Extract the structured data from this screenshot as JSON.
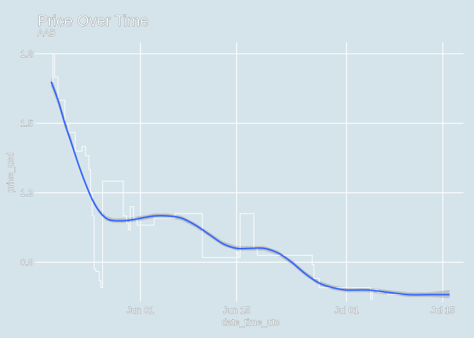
{
  "chart_data": {
    "type": "line",
    "title": "Price Over Time",
    "subtitle": "AAB",
    "xlabel": "date_time_utc",
    "ylabel": "price_usd",
    "xlim": [
      "2020-05-17",
      "2020-07-18"
    ],
    "ylim": [
      0.74,
      1.85
    ],
    "x_ticks": [
      {
        "date": "2020-06-01",
        "label": "Jun 01"
      },
      {
        "date": "2020-06-15",
        "label": "Jun 15"
      },
      {
        "date": "2020-07-01",
        "label": "Jul 01"
      },
      {
        "date": "2020-07-15",
        "label": "Jul 15"
      }
    ],
    "y_ticks": [
      {
        "value": 0.9,
        "label": "0.9"
      },
      {
        "value": 1.2,
        "label": "1.2"
      },
      {
        "value": 1.5,
        "label": "1.5"
      },
      {
        "value": 1.8,
        "label": "1.8"
      }
    ],
    "grid": true,
    "series": [
      {
        "kind": "step",
        "color": "#ffffff",
        "points": [
          {
            "x": "2020-05-19 00:00",
            "y": 1.68
          },
          {
            "x": "2020-05-19 06:00",
            "y": 1.8
          },
          {
            "x": "2020-05-19 12:00",
            "y": 1.7
          },
          {
            "x": "2020-05-20 00:00",
            "y": 1.6
          },
          {
            "x": "2020-05-21 00:00",
            "y": 1.5
          },
          {
            "x": "2020-05-21 12:00",
            "y": 1.46
          },
          {
            "x": "2020-05-22 12:00",
            "y": 1.38
          },
          {
            "x": "2020-05-23 12:00",
            "y": 1.4
          },
          {
            "x": "2020-05-24 00:00",
            "y": 1.36
          },
          {
            "x": "2020-05-24 12:00",
            "y": 1.3
          },
          {
            "x": "2020-05-24 18:00",
            "y": 1.2
          },
          {
            "x": "2020-05-25 00:00",
            "y": 1.1
          },
          {
            "x": "2020-05-25 06:00",
            "y": 0.87
          },
          {
            "x": "2020-05-25 12:00",
            "y": 0.86
          },
          {
            "x": "2020-05-26 00:00",
            "y": 0.82
          },
          {
            "x": "2020-05-26 06:00",
            "y": 0.79
          },
          {
            "x": "2020-05-26 12:00",
            "y": 1.25
          },
          {
            "x": "2020-05-29 12:00",
            "y": 1.1
          },
          {
            "x": "2020-05-30 00:00",
            "y": 1.07
          },
          {
            "x": "2020-05-30 06:00",
            "y": 1.04
          },
          {
            "x": "2020-05-30 12:00",
            "y": 1.14
          },
          {
            "x": "2020-05-31 00:00",
            "y": 1.09
          },
          {
            "x": "2020-05-31 12:00",
            "y": 1.06
          },
          {
            "x": "2020-06-03 00:00",
            "y": 1.09
          },
          {
            "x": "2020-06-06 00:00",
            "y": 1.11
          },
          {
            "x": "2020-06-10 00:00",
            "y": 0.92
          },
          {
            "x": "2020-06-15 00:00",
            "y": 0.94
          },
          {
            "x": "2020-06-15 06:00",
            "y": 0.92
          },
          {
            "x": "2020-06-15 12:00",
            "y": 1.11
          },
          {
            "x": "2020-06-17 12:00",
            "y": 0.96
          },
          {
            "x": "2020-06-18 00:00",
            "y": 0.93
          },
          {
            "x": "2020-06-26 00:00",
            "y": 0.89
          },
          {
            "x": "2020-06-26 06:00",
            "y": 0.83
          },
          {
            "x": "2020-06-27 00:00",
            "y": 0.79
          },
          {
            "x": "2020-07-04 12:00",
            "y": 0.74
          },
          {
            "x": "2020-07-04 18:00",
            "y": 0.78
          },
          {
            "x": "2020-07-05 12:00",
            "y": 0.77
          },
          {
            "x": "2020-07-07 00:00",
            "y": 0.76
          },
          {
            "x": "2020-07-16 00:00",
            "y": 0.76
          }
        ]
      },
      {
        "kind": "smooth",
        "color": "#3366ff",
        "band_color": "#a6a6a6",
        "points": [
          {
            "x": "2020-05-19",
            "y": 1.68,
            "lo": 1.66,
            "hi": 1.7
          },
          {
            "x": "2020-05-20",
            "y": 1.6,
            "lo": 1.58,
            "hi": 1.62
          },
          {
            "x": "2020-05-21",
            "y": 1.5,
            "lo": 1.48,
            "hi": 1.52
          },
          {
            "x": "2020-05-22",
            "y": 1.41,
            "lo": 1.4,
            "hi": 1.43
          },
          {
            "x": "2020-05-23",
            "y": 1.32,
            "lo": 1.31,
            "hi": 1.33
          },
          {
            "x": "2020-05-24",
            "y": 1.24,
            "lo": 1.23,
            "hi": 1.25
          },
          {
            "x": "2020-05-25",
            "y": 1.17,
            "lo": 1.16,
            "hi": 1.18
          },
          {
            "x": "2020-05-26",
            "y": 1.12,
            "lo": 1.11,
            "hi": 1.13
          },
          {
            "x": "2020-05-27",
            "y": 1.09,
            "lo": 1.08,
            "hi": 1.1
          },
          {
            "x": "2020-05-28",
            "y": 1.08,
            "lo": 1.07,
            "hi": 1.09
          },
          {
            "x": "2020-05-30",
            "y": 1.08,
            "lo": 1.07,
            "hi": 1.09
          },
          {
            "x": "2020-06-01",
            "y": 1.09,
            "lo": 1.08,
            "hi": 1.1
          },
          {
            "x": "2020-06-03",
            "y": 1.1,
            "lo": 1.09,
            "hi": 1.11
          },
          {
            "x": "2020-06-05",
            "y": 1.1,
            "lo": 1.09,
            "hi": 1.11
          },
          {
            "x": "2020-06-07",
            "y": 1.09,
            "lo": 1.08,
            "hi": 1.1
          },
          {
            "x": "2020-06-09",
            "y": 1.06,
            "lo": 1.05,
            "hi": 1.07
          },
          {
            "x": "2020-06-11",
            "y": 1.02,
            "lo": 1.01,
            "hi": 1.03
          },
          {
            "x": "2020-06-13",
            "y": 0.98,
            "lo": 0.97,
            "hi": 0.99
          },
          {
            "x": "2020-06-15",
            "y": 0.96,
            "lo": 0.95,
            "hi": 0.97
          },
          {
            "x": "2020-06-17",
            "y": 0.96,
            "lo": 0.95,
            "hi": 0.97
          },
          {
            "x": "2020-06-19",
            "y": 0.96,
            "lo": 0.95,
            "hi": 0.97
          },
          {
            "x": "2020-06-21",
            "y": 0.94,
            "lo": 0.93,
            "hi": 0.95
          },
          {
            "x": "2020-06-23",
            "y": 0.9,
            "lo": 0.89,
            "hi": 0.91
          },
          {
            "x": "2020-06-25",
            "y": 0.85,
            "lo": 0.84,
            "hi": 0.86
          },
          {
            "x": "2020-06-27",
            "y": 0.81,
            "lo": 0.8,
            "hi": 0.82
          },
          {
            "x": "2020-06-29",
            "y": 0.79,
            "lo": 0.78,
            "hi": 0.8
          },
          {
            "x": "2020-07-01",
            "y": 0.78,
            "lo": 0.77,
            "hi": 0.79
          },
          {
            "x": "2020-07-04",
            "y": 0.78,
            "lo": 0.77,
            "hi": 0.79
          },
          {
            "x": "2020-07-07",
            "y": 0.77,
            "lo": 0.76,
            "hi": 0.78
          },
          {
            "x": "2020-07-10",
            "y": 0.76,
            "lo": 0.75,
            "hi": 0.77
          },
          {
            "x": "2020-07-13",
            "y": 0.76,
            "lo": 0.75,
            "hi": 0.77
          },
          {
            "x": "2020-07-16",
            "y": 0.76,
            "lo": 0.745,
            "hi": 0.78
          }
        ]
      }
    ]
  }
}
